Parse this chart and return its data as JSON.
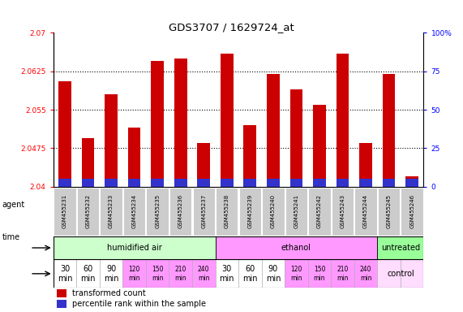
{
  "title": "GDS3707 / 1629724_at",
  "samples": [
    "GSM455231",
    "GSM455232",
    "GSM455233",
    "GSM455234",
    "GSM455235",
    "GSM455236",
    "GSM455237",
    "GSM455238",
    "GSM455239",
    "GSM455240",
    "GSM455241",
    "GSM455242",
    "GSM455243",
    "GSM455244",
    "GSM455245",
    "GSM455246"
  ],
  "red_values": [
    2.0605,
    2.0495,
    2.058,
    2.0515,
    2.0645,
    2.065,
    2.0485,
    2.066,
    2.052,
    2.062,
    2.059,
    2.056,
    2.066,
    2.0485,
    2.062,
    2.042
  ],
  "blue_values": [
    3,
    3,
    4,
    4,
    4,
    4,
    4,
    4,
    3,
    3,
    4,
    4,
    3,
    3,
    4,
    3
  ],
  "ymin": 2.04,
  "ymax": 2.07,
  "yticks_left": [
    2.04,
    2.0475,
    2.055,
    2.0625,
    2.07
  ],
  "ytick_labels_left": [
    "2.04",
    "2.0475",
    "2.055",
    "2.0625",
    "2.07"
  ],
  "right_yticks_pct": [
    0,
    25,
    50,
    75,
    100
  ],
  "right_ytick_labels": [
    "0",
    "25",
    "50",
    "75",
    "100%"
  ],
  "agent_groups": [
    {
      "label": "humidified air",
      "start": 0,
      "end": 7,
      "color": "#ccffcc"
    },
    {
      "label": "ethanol",
      "start": 7,
      "end": 14,
      "color": "#ff99ff"
    },
    {
      "label": "untreated",
      "start": 14,
      "end": 16,
      "color": "#99ff99"
    }
  ],
  "time_labels": [
    "30\nmin",
    "60\nmin",
    "90\nmin",
    "120\nmin",
    "150\nmin",
    "210\nmin",
    "240\nmin",
    "30\nmin",
    "60\nmin",
    "90\nmin",
    "120\nmin",
    "150\nmin",
    "210\nmin",
    "240\nmin",
    "",
    ""
  ],
  "time_colors": [
    "#ffffff",
    "#ffffff",
    "#ffffff",
    "#ff99ff",
    "#ff99ff",
    "#ff99ff",
    "#ff99ff",
    "#ffffff",
    "#ffffff",
    "#ffffff",
    "#ff99ff",
    "#ff99ff",
    "#ff99ff",
    "#ff99ff",
    "#ffddff",
    "#ffddff"
  ],
  "time_fontsize_big": 7,
  "time_fontsize_small": 5.5,
  "time_small_indices": [
    3,
    4,
    5,
    6,
    10,
    11,
    12,
    13
  ],
  "red_color": "#cc0000",
  "blue_color": "#3333cc",
  "bar_width": 0.55,
  "plot_bg": "#ffffff",
  "label_bg": "#cccccc",
  "control_label": "control",
  "agent_label": "agent",
  "time_label": "time",
  "legend_red": "transformed count",
  "legend_blue": "percentile rank within the sample"
}
